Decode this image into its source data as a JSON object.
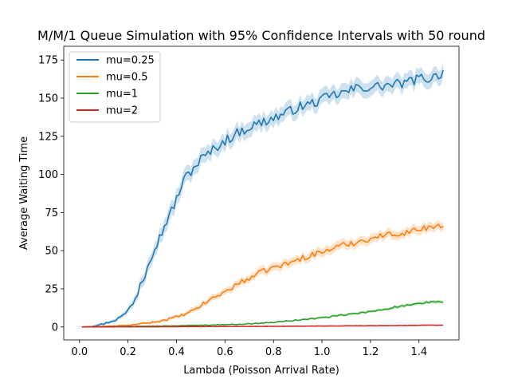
{
  "chart_data": {
    "type": "line",
    "title": "M/M/1 Queue Simulation with 95% Confidence Intervals with 50 round",
    "xlabel": "Lambda (Poisson Arrival Rate)",
    "ylabel": "Average Waiting Time",
    "xlim": [
      -0.065,
      1.565
    ],
    "ylim": [
      -8.5,
      184
    ],
    "xticks": [
      0.0,
      0.2,
      0.4,
      0.6,
      0.8,
      1.0,
      1.2,
      1.4
    ],
    "xtick_labels": [
      "0.0",
      "0.2",
      "0.4",
      "0.6",
      "0.8",
      "1.0",
      "1.2",
      "1.4"
    ],
    "yticks": [
      0,
      25,
      50,
      75,
      100,
      125,
      150,
      175
    ],
    "ytick_labels": [
      "0",
      "25",
      "50",
      "75",
      "100",
      "125",
      "150",
      "175"
    ],
    "grid": false,
    "legend_position": "top-left",
    "x_range": [
      0.01,
      1.5
    ],
    "series": [
      {
        "name": "mu=0.25",
        "color": "#1f77b4",
        "points": [
          [
            0.01,
            0.0
          ],
          [
            0.05,
            0.5
          ],
          [
            0.1,
            2.0
          ],
          [
            0.15,
            4.8
          ],
          [
            0.18,
            7.5
          ],
          [
            0.2,
            11.0
          ],
          [
            0.22,
            16.0
          ],
          [
            0.24,
            22.0
          ],
          [
            0.25,
            29.0
          ],
          [
            0.27,
            34.0
          ],
          [
            0.28,
            42.0
          ],
          [
            0.3,
            48.0
          ],
          [
            0.32,
            55.0
          ],
          [
            0.34,
            62.0
          ],
          [
            0.36,
            70.0
          ],
          [
            0.38,
            76.0
          ],
          [
            0.4,
            84.0
          ],
          [
            0.42,
            92.0
          ],
          [
            0.44,
            99.0
          ],
          [
            0.46,
            102.0
          ],
          [
            0.48,
            106.0
          ],
          [
            0.5,
            110.0
          ],
          [
            0.52,
            112.0
          ],
          [
            0.55,
            116.0
          ],
          [
            0.58,
            120.0
          ],
          [
            0.6,
            122.0
          ],
          [
            0.65,
            127.0
          ],
          [
            0.7,
            131.0
          ],
          [
            0.75,
            134.0
          ],
          [
            0.8,
            137.0
          ],
          [
            0.85,
            140.0
          ],
          [
            0.9,
            144.0
          ],
          [
            0.95,
            146.0
          ],
          [
            1.0,
            149.0
          ],
          [
            1.05,
            152.0
          ],
          [
            1.1,
            154.0
          ],
          [
            1.15,
            157.0
          ],
          [
            1.2,
            157.0
          ],
          [
            1.25,
            158.0
          ],
          [
            1.3,
            159.0
          ],
          [
            1.35,
            160.0
          ],
          [
            1.4,
            163.0
          ],
          [
            1.45,
            163.0
          ],
          [
            1.5,
            167.0
          ]
        ],
        "ci_half_width": [
          0.2,
          0.4,
          0.8,
          1.2,
          1.5,
          2.0,
          2.5,
          3.0,
          3.5,
          3.8,
          4.0,
          4.2,
          4.5,
          4.8,
          5.0,
          5.0,
          5.0,
          5.0,
          5.0,
          5.0,
          5.0,
          5.0,
          5.0,
          5.0,
          5.0,
          5.0,
          5.0,
          5.0,
          5.0,
          5.0,
          5.0,
          5.0,
          5.0,
          5.0,
          5.0,
          5.0,
          5.0,
          5.0,
          5.0,
          5.0,
          5.0,
          5.0,
          5.0,
          5.0
        ]
      },
      {
        "name": "mu=0.5",
        "color": "#ff7f0e",
        "points": [
          [
            0.01,
            0.0
          ],
          [
            0.1,
            0.4
          ],
          [
            0.2,
            1.0
          ],
          [
            0.3,
            3.0
          ],
          [
            0.35,
            4.5
          ],
          [
            0.4,
            6.5
          ],
          [
            0.45,
            9.0
          ],
          [
            0.5,
            14.0
          ],
          [
            0.55,
            19.0
          ],
          [
            0.6,
            23.0
          ],
          [
            0.65,
            28.0
          ],
          [
            0.7,
            32.0
          ],
          [
            0.75,
            36.0
          ],
          [
            0.8,
            39.0
          ],
          [
            0.85,
            41.0
          ],
          [
            0.9,
            44.0
          ],
          [
            0.95,
            47.0
          ],
          [
            1.0,
            49.0
          ],
          [
            1.05,
            52.0
          ],
          [
            1.1,
            54.0
          ],
          [
            1.15,
            56.0
          ],
          [
            1.2,
            58.0
          ],
          [
            1.25,
            60.0
          ],
          [
            1.3,
            61.0
          ],
          [
            1.35,
            62.0
          ],
          [
            1.4,
            64.0
          ],
          [
            1.45,
            66.0
          ],
          [
            1.5,
            66.0
          ]
        ],
        "ci_half_width": [
          0.1,
          0.2,
          0.4,
          0.8,
          1.0,
          1.2,
          1.5,
          1.8,
          2.0,
          2.2,
          2.4,
          2.5,
          2.6,
          2.7,
          2.8,
          2.8,
          2.9,
          3.0,
          3.0,
          3.0,
          3.0,
          3.0,
          3.0,
          3.0,
          3.0,
          3.0,
          3.0,
          3.0
        ]
      },
      {
        "name": "mu=1",
        "color": "#2ca02c",
        "points": [
          [
            0.01,
            0.0
          ],
          [
            0.2,
            0.3
          ],
          [
            0.4,
            0.8
          ],
          [
            0.6,
            1.5
          ],
          [
            0.7,
            2.0
          ],
          [
            0.8,
            3.0
          ],
          [
            0.9,
            4.5
          ],
          [
            1.0,
            6.0
          ],
          [
            1.1,
            8.0
          ],
          [
            1.2,
            10.0
          ],
          [
            1.3,
            13.0
          ],
          [
            1.4,
            15.0
          ],
          [
            1.45,
            16.5
          ],
          [
            1.5,
            16.5
          ]
        ],
        "ci_half_width": [
          0.05,
          0.1,
          0.2,
          0.3,
          0.4,
          0.5,
          0.6,
          0.7,
          0.8,
          0.9,
          1.0,
          1.1,
          1.2,
          1.2
        ]
      },
      {
        "name": "mu=2",
        "color": "#d62728",
        "points": [
          [
            0.01,
            0.0
          ],
          [
            0.3,
            0.1
          ],
          [
            0.6,
            0.3
          ],
          [
            0.9,
            0.5
          ],
          [
            1.2,
            0.8
          ],
          [
            1.5,
            1.2
          ]
        ],
        "ci_half_width": [
          0.05,
          0.05,
          0.1,
          0.1,
          0.15,
          0.2
        ]
      }
    ]
  }
}
